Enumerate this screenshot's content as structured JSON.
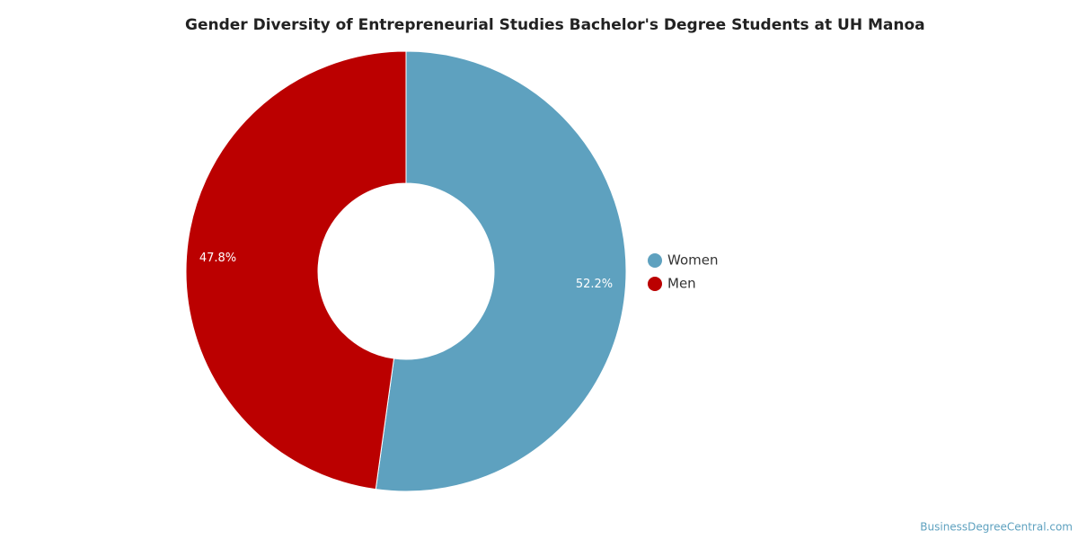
{
  "chart_data": {
    "type": "donut",
    "title": "Gender Diversity of Entrepreneurial Studies Bachelor's Degree Students at UH Manoa",
    "categories": [
      "Women",
      "Men"
    ],
    "values": [
      52.2,
      47.8
    ],
    "value_labels": [
      "52.2%",
      "47.8%"
    ],
    "colors": [
      "#5ea1bf",
      "#bb0000"
    ],
    "legend": "right",
    "credit": "BusinessDegreeCentral.com"
  }
}
